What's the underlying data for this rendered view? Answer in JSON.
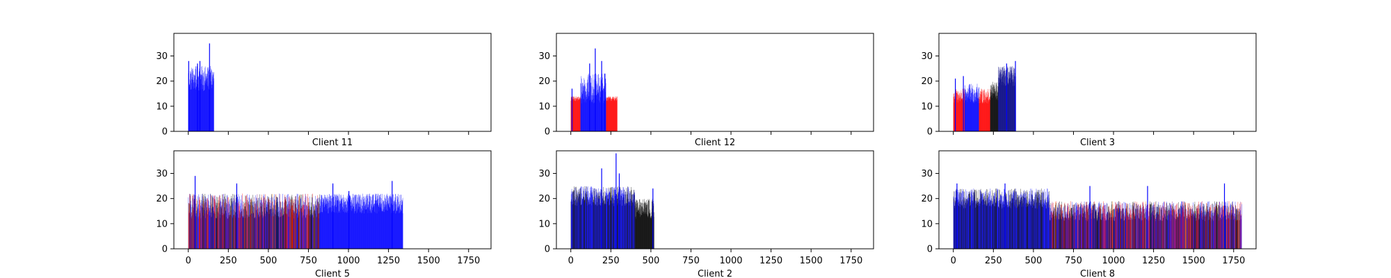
{
  "chart_data": [
    {
      "type": "bar",
      "title": "",
      "xlabel": "Client 11",
      "ylabel": "",
      "xlim": [
        -90,
        1890
      ],
      "ylim": [
        0,
        39
      ],
      "xticks": [
        0,
        250,
        500,
        750,
        1000,
        1250,
        1500,
        1750
      ],
      "xticklabels_visible": false,
      "yticks": [
        0,
        10,
        20,
        30
      ],
      "n_bars": 160,
      "segments": [
        {
          "from": 0,
          "to": 160,
          "color": "#0000ff",
          "level": 21,
          "spread": 5
        }
      ],
      "peaks": [
        {
          "x": 0,
          "value": 28
        },
        {
          "x": 55,
          "value": 27
        },
        {
          "x": 70,
          "value": 28
        },
        {
          "x": 130,
          "value": 35
        }
      ]
    },
    {
      "type": "bar",
      "title": "",
      "xlabel": "Client 12",
      "ylabel": "",
      "xlim": [
        -90,
        1890
      ],
      "ylim": [
        0,
        39
      ],
      "xticks": [
        0,
        250,
        500,
        750,
        1000,
        1250,
        1500,
        1750
      ],
      "xticklabels_visible": false,
      "yticks": [
        0,
        10,
        20,
        30
      ],
      "n_bars": 290,
      "segments": [
        {
          "from": 0,
          "to": 60,
          "color": "#ff0000",
          "level": 13,
          "spread": 1
        },
        {
          "from": 60,
          "to": 220,
          "color": "#0000ff",
          "level": 17,
          "spread": 6
        },
        {
          "from": 220,
          "to": 290,
          "color": "#ff0000",
          "level": 13,
          "spread": 1
        }
      ],
      "peaks": [
        {
          "x": 5,
          "value": 17
        },
        {
          "x": 115,
          "value": 27
        },
        {
          "x": 150,
          "value": 33
        },
        {
          "x": 190,
          "value": 28
        },
        {
          "x": 210,
          "value": 23
        }
      ]
    },
    {
      "type": "bar",
      "title": "",
      "xlabel": "Client 3",
      "ylabel": "",
      "xlim": [
        -90,
        1890
      ],
      "ylim": [
        0,
        39
      ],
      "xticks": [
        0,
        250,
        500,
        750,
        1000,
        1250,
        1500,
        1750
      ],
      "xticklabels_visible": false,
      "yticks": [
        0,
        10,
        20,
        30
      ],
      "n_bars": 390,
      "segments": [
        {
          "from": 0,
          "to": 70,
          "color": "#ff0000",
          "level": 14,
          "spread": 3
        },
        {
          "from": 70,
          "to": 160,
          "color": "#0000ff",
          "level": 15,
          "spread": 4
        },
        {
          "from": 160,
          "to": 230,
          "color": "#ff0000",
          "level": 14,
          "spread": 3
        },
        {
          "from": 230,
          "to": 280,
          "color": "#000000",
          "level": 16,
          "spread": 4
        },
        {
          "from": 280,
          "to": 390,
          "color": "#000080",
          "level": 22,
          "spread": 4
        }
      ],
      "peaks": [
        {
          "x": 10,
          "value": 21
        },
        {
          "x": 60,
          "value": 22
        },
        {
          "x": 330,
          "value": 27
        },
        {
          "x": 385,
          "value": 28
        }
      ]
    },
    {
      "type": "bar",
      "title": "",
      "xlabel": "Client 5",
      "ylabel": "",
      "xlim": [
        -90,
        1890
      ],
      "ylim": [
        0,
        39
      ],
      "xticks": [
        0,
        250,
        500,
        750,
        1000,
        1250,
        1500,
        1750
      ],
      "xticklabels_visible": true,
      "yticks": [
        0,
        10,
        20,
        30
      ],
      "n_bars": 1340,
      "segments": [
        {
          "from": 0,
          "to": 820,
          "color": "mixed",
          "level": 17,
          "spread": 5
        },
        {
          "from": 820,
          "to": 1340,
          "color": "#0000ff",
          "level": 18,
          "spread": 4
        }
      ],
      "peaks": [
        {
          "x": 40,
          "value": 29
        },
        {
          "x": 300,
          "value": 26
        },
        {
          "x": 900,
          "value": 26
        },
        {
          "x": 1000,
          "value": 23
        },
        {
          "x": 1270,
          "value": 27
        }
      ]
    },
    {
      "type": "bar",
      "title": "",
      "xlabel": "Client 2",
      "ylabel": "",
      "xlim": [
        -90,
        1890
      ],
      "ylim": [
        0,
        39
      ],
      "xticks": [
        0,
        250,
        500,
        750,
        1000,
        1250,
        1500,
        1750
      ],
      "xticklabels_visible": true,
      "yticks": [
        0,
        10,
        20,
        30
      ],
      "n_bars": 520,
      "segments": [
        {
          "from": 0,
          "to": 400,
          "color": "mixed-bk",
          "level": 21,
          "spread": 4
        },
        {
          "from": 400,
          "to": 520,
          "color": "#000000",
          "level": 16,
          "spread": 4
        }
      ],
      "peaks": [
        {
          "x": 190,
          "value": 32
        },
        {
          "x": 280,
          "value": 38
        },
        {
          "x": 300,
          "value": 30
        },
        {
          "x": 510,
          "value": 24
        }
      ]
    },
    {
      "type": "bar",
      "title": "",
      "xlabel": "Client 8",
      "ylabel": "",
      "xlim": [
        -90,
        1890
      ],
      "ylim": [
        0,
        39
      ],
      "xticks": [
        0,
        250,
        500,
        750,
        1000,
        1250,
        1500,
        1750
      ],
      "xticklabels_visible": true,
      "yticks": [
        0,
        10,
        20,
        30
      ],
      "n_bars": 1800,
      "segments": [
        {
          "from": 0,
          "to": 600,
          "color": "mixed-bk",
          "level": 20,
          "spread": 4
        },
        {
          "from": 600,
          "to": 1800,
          "color": "mixed",
          "level": 15,
          "spread": 4
        }
      ],
      "peaks": [
        {
          "x": 20,
          "value": 26
        },
        {
          "x": 320,
          "value": 26
        },
        {
          "x": 850,
          "value": 25
        },
        {
          "x": 1210,
          "value": 25
        },
        {
          "x": 1690,
          "value": 26
        }
      ]
    }
  ]
}
